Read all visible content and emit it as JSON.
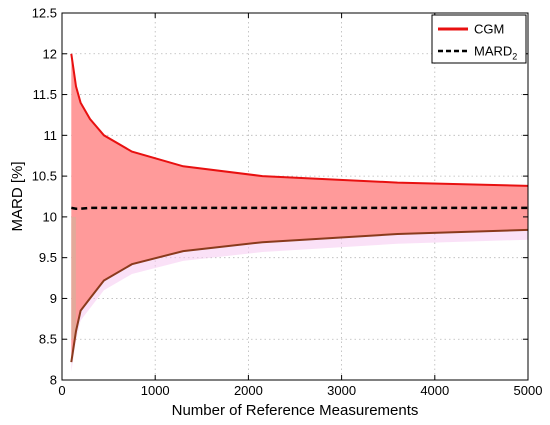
{
  "chart_data": {
    "type": "area",
    "xlabel": "Number of Reference Measurements",
    "ylabel": "MARD [%]",
    "xlim": [
      0,
      5000
    ],
    "ylim": [
      8,
      12.5
    ],
    "xticks": [
      0,
      1000,
      2000,
      3000,
      4000,
      5000
    ],
    "yticks": [
      8,
      8.5,
      9,
      9.5,
      10,
      10.5,
      11,
      11.5,
      12,
      12.5
    ],
    "xtick_labels": [
      "0",
      "1000",
      "2000",
      "3000",
      "4000",
      "5000"
    ],
    "ytick_labels": [
      "8",
      "8.5",
      "9",
      "9.5",
      "10",
      "10.5",
      "11",
      "11.5",
      "12",
      "12.5"
    ],
    "grid": true,
    "legend_position": "top-right",
    "colors": {
      "band_fill": "#ff9a9a",
      "band_fill_secondary": "#f5c8f0",
      "upper_line": "#e81010",
      "lower_line": "#8a3a1c",
      "mard2_line": "#000000"
    },
    "x": [
      100,
      150,
      200,
      300,
      450,
      750,
      1300,
      2150,
      3600,
      5000
    ],
    "series": [
      {
        "name": "CGM",
        "role": "upper_bound",
        "values": [
          12.0,
          11.6,
          11.4,
          11.2,
          11.0,
          10.8,
          10.62,
          10.5,
          10.42,
          10.38
        ]
      },
      {
        "name": "",
        "role": "lower_bound",
        "values": [
          8.22,
          8.6,
          8.85,
          9.0,
          9.22,
          9.42,
          9.58,
          9.69,
          9.79,
          9.84
        ]
      },
      {
        "name": "MARD",
        "name_subscript": "2",
        "role": "mean",
        "values": [
          10.11,
          10.1,
          10.1,
          10.11,
          10.11,
          10.11,
          10.11,
          10.11,
          10.11,
          10.11
        ]
      }
    ],
    "legend": [
      {
        "label": "CGM",
        "subscript": "",
        "style": "solid",
        "color": "#e81010"
      },
      {
        "label": "MARD",
        "subscript": "2",
        "style": "dashed",
        "color": "#000000"
      }
    ]
  }
}
